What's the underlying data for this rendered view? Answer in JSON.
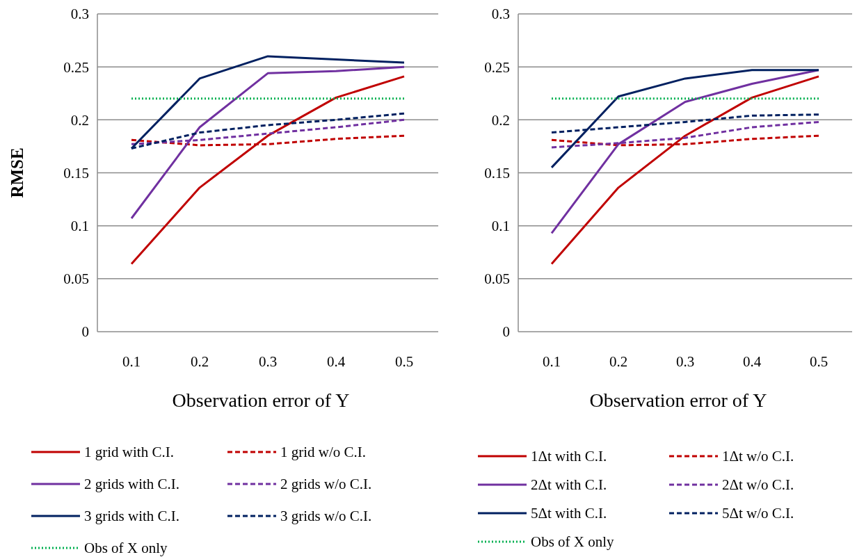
{
  "chart_data": [
    {
      "type": "line",
      "xlabel": "Observation error of Y",
      "ylabel": "RMSE",
      "categories": [
        "0.1",
        "0.2",
        "0.3",
        "0.4",
        "0.5"
      ],
      "ylim": [
        0,
        0.3
      ],
      "yticks": [
        0,
        0.05,
        0.1,
        0.15,
        0.2,
        0.25,
        0.3
      ],
      "grid": "y",
      "legend": "bottom",
      "marker": "none",
      "series": [
        {
          "name": "1 grid with C.I.",
          "color": "#c00000",
          "line_style": "solid",
          "values": [
            0.064,
            0.136,
            0.185,
            0.221,
            0.241
          ]
        },
        {
          "name": "1 grid w/o C.I.",
          "color": "#c00000",
          "line_style": "dashed",
          "values": [
            0.181,
            0.176,
            0.177,
            0.182,
            0.185
          ]
        },
        {
          "name": "2 grids with C.I.",
          "color": "#7030a0",
          "line_style": "solid",
          "values": [
            0.107,
            0.193,
            0.244,
            0.246,
            0.25
          ]
        },
        {
          "name": "2 grids w/o C.I.",
          "color": "#7030a0",
          "line_style": "dashed",
          "values": [
            0.177,
            0.181,
            0.187,
            0.193,
            0.2
          ]
        },
        {
          "name": "3 grids with C.I.",
          "color": "#002060",
          "line_style": "solid",
          "values": [
            0.173,
            0.239,
            0.26,
            0.257,
            0.254
          ]
        },
        {
          "name": "3 grids w/o C.I.",
          "color": "#002060",
          "line_style": "dashed",
          "values": [
            0.173,
            0.188,
            0.195,
            0.2,
            0.206
          ]
        },
        {
          "name": "Obs of X only",
          "color": "#00b050",
          "line_style": "dotted",
          "values": [
            0.22,
            0.22,
            0.22,
            0.22,
            0.22
          ]
        }
      ]
    },
    {
      "type": "line",
      "xlabel": "Observation error of Y",
      "categories": [
        "0.1",
        "0.2",
        "0.3",
        "0.4",
        "0.5"
      ],
      "ylim": [
        0,
        0.3
      ],
      "yticks": [
        0,
        0.05,
        0.1,
        0.15,
        0.2,
        0.25,
        0.3
      ],
      "grid": "y",
      "legend": "bottom",
      "marker": "none",
      "series": [
        {
          "name": "1Δt with C.I.",
          "color": "#c00000",
          "line_style": "solid",
          "values": [
            0.064,
            0.136,
            0.185,
            0.221,
            0.241
          ]
        },
        {
          "name": "1Δt w/o C.I.",
          "color": "#c00000",
          "line_style": "dashed",
          "values": [
            0.181,
            0.176,
            0.177,
            0.182,
            0.185
          ]
        },
        {
          "name": "2Δt with C.I.",
          "color": "#7030a0",
          "line_style": "solid",
          "values": [
            0.093,
            0.177,
            0.217,
            0.234,
            0.247
          ]
        },
        {
          "name": "2Δt w/o C.I.",
          "color": "#7030a0",
          "line_style": "dashed",
          "values": [
            0.174,
            0.178,
            0.183,
            0.193,
            0.198
          ]
        },
        {
          "name": "5Δt with C.I.",
          "color": "#002060",
          "line_style": "solid",
          "values": [
            0.155,
            0.222,
            0.239,
            0.247,
            0.247
          ]
        },
        {
          "name": "5Δt w/o C.I.",
          "color": "#002060",
          "line_style": "dashed",
          "values": [
            0.188,
            0.193,
            0.198,
            0.204,
            0.205
          ]
        },
        {
          "name": "Obs of X only",
          "color": "#00b050",
          "line_style": "dotted",
          "values": [
            0.22,
            0.22,
            0.22,
            0.22,
            0.22
          ]
        }
      ]
    }
  ]
}
